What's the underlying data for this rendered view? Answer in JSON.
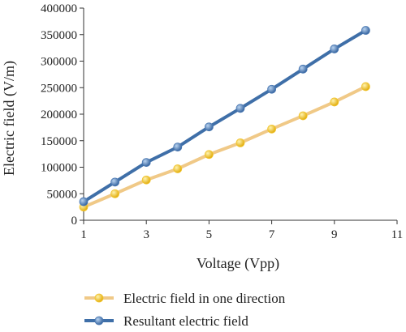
{
  "chart_data": {
    "type": "line",
    "xlabel": "Voltage (Vpp)",
    "ylabel": "Electric field (V/m)",
    "xlim": [
      1,
      11
    ],
    "ylim": [
      0,
      400000
    ],
    "xticks": [
      1,
      3,
      5,
      7,
      9,
      11
    ],
    "yticks": [
      0,
      50000,
      100000,
      150000,
      200000,
      250000,
      300000,
      350000,
      400000
    ],
    "grid": false,
    "legend_position": "bottom",
    "x": [
      1,
      2,
      3,
      4,
      5,
      6,
      7,
      8,
      9,
      10
    ],
    "series": [
      {
        "name": "Electric field in one direction",
        "color": "#f2c52f",
        "line_color": "#f0c987",
        "values": [
          25000,
          50000,
          76000,
          97000,
          124000,
          146000,
          172000,
          197000,
          223000,
          252000
        ]
      },
      {
        "name": "Resultant electric field",
        "color": "#4a78b2",
        "line_color": "#3f6fa8",
        "values": [
          35000,
          72000,
          109000,
          138000,
          176000,
          211000,
          247000,
          285000,
          323000,
          358000
        ]
      }
    ]
  }
}
